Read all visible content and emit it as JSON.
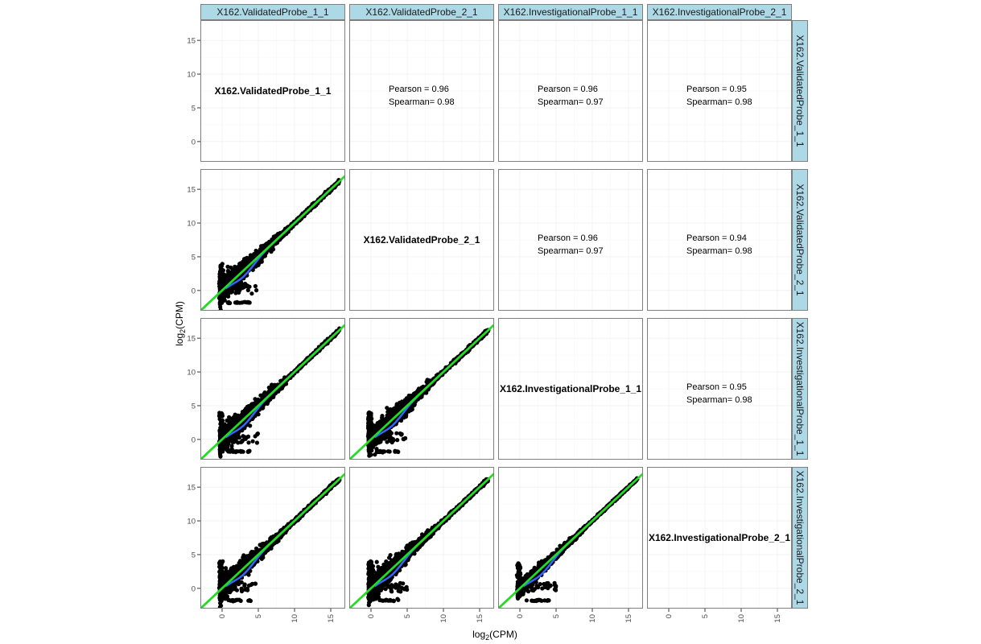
{
  "chart_data": {
    "type": "scatter",
    "variables": [
      "X162.ValidatedProbe_1_1",
      "X162.ValidatedProbe_2_1",
      "X162.InvestigationalProbe_1_1",
      "X162.InvestigationalProbe_2_1"
    ],
    "xlabel": "log2(CPM)",
    "ylabel": "log2(CPM)",
    "x_ticks": [
      0,
      5,
      10,
      15
    ],
    "y_ticks": [
      0,
      5,
      10,
      15
    ],
    "xlim": [
      -3,
      17
    ],
    "ylim": [
      -3,
      18
    ],
    "correlations": [
      {
        "row": 0,
        "col": 1,
        "pearson_label": "Pearson = ",
        "pearson": "0.96",
        "spearman_label": "Spearman= ",
        "spearman": "0.98"
      },
      {
        "row": 0,
        "col": 2,
        "pearson_label": "Pearson = ",
        "pearson": "0.96",
        "spearman_label": "Spearman= ",
        "spearman": "0.97"
      },
      {
        "row": 0,
        "col": 3,
        "pearson_label": "Pearson = ",
        "pearson": "0.95",
        "spearman_label": "Spearman= ",
        "spearman": "0.98"
      },
      {
        "row": 1,
        "col": 2,
        "pearson_label": "Pearson = ",
        "pearson": "0.96",
        "spearman_label": "Spearman= ",
        "spearman": "0.97"
      },
      {
        "row": 1,
        "col": 3,
        "pearson_label": "Pearson = ",
        "pearson": "0.94",
        "spearman_label": "Spearman= ",
        "spearman": "0.98"
      },
      {
        "row": 2,
        "col": 3,
        "pearson_label": "Pearson = ",
        "pearson": "0.95",
        "spearman_label": "Spearman= ",
        "spearman": "0.98"
      }
    ],
    "reference_line": {
      "slope": 1,
      "intercept": 0,
      "color": "#22dd22"
    },
    "smooth_line_color": "#3366ff",
    "point_color": "#000000",
    "strip_color": "#add8e6",
    "grid": true
  }
}
